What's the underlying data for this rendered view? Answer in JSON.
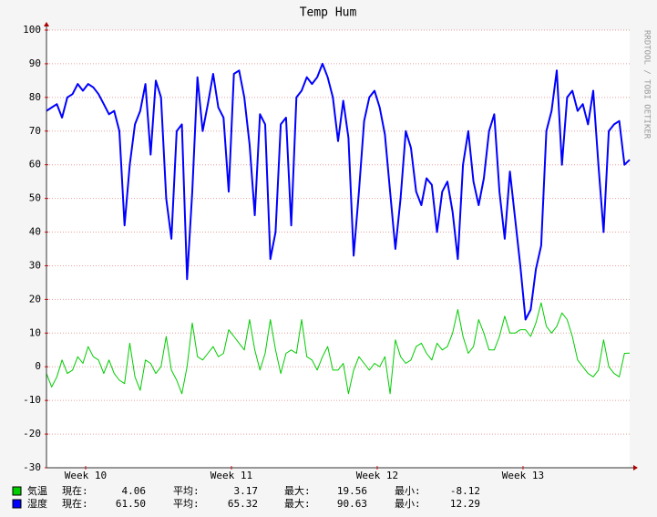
{
  "chart_data": {
    "type": "line",
    "title": "Temp Hum",
    "watermark": "RRDTOOL / TOBI OETIKER",
    "x": [
      0,
      0.25,
      0.5,
      0.75,
      1,
      1.25,
      1.5,
      1.75,
      2,
      2.25,
      2.5,
      2.75,
      3,
      3.25,
      3.5,
      3.75,
      4,
      4.25,
      4.5,
      4.75,
      5,
      5.25,
      5.5,
      5.75,
      6,
      6.25,
      6.5,
      6.75,
      7,
      7.25,
      7.5,
      7.75,
      8,
      8.25,
      8.5,
      8.75,
      9,
      9.25,
      9.5,
      9.75,
      10,
      10.25,
      10.5,
      10.75,
      11,
      11.25,
      11.5,
      11.75,
      12,
      12.25,
      12.5,
      12.75,
      13,
      13.25,
      13.5,
      13.75,
      14,
      14.25,
      14.5,
      14.75,
      15,
      15.25,
      15.5,
      15.75,
      16,
      16.25,
      16.5,
      16.75,
      17,
      17.25,
      17.5,
      17.75,
      18,
      18.25,
      18.5,
      18.75,
      19,
      19.25,
      19.5,
      19.75,
      20,
      20.25,
      20.5,
      20.75,
      21,
      21.25,
      21.5,
      21.75,
      22,
      22.25,
      22.5,
      22.75,
      23,
      23.25,
      23.5,
      23.75,
      24,
      24.25,
      24.5,
      24.75,
      25,
      25.25,
      25.5,
      25.75,
      26,
      26.25,
      26.5,
      26.75,
      27,
      27.25,
      27.5,
      27.75,
      28
    ],
    "xlim": [
      0,
      28
    ],
    "xticks": [
      {
        "value": 1.88,
        "label": "Week 10"
      },
      {
        "value": 8.88,
        "label": "Week 11"
      },
      {
        "value": 15.88,
        "label": "Week 12"
      },
      {
        "value": 22.88,
        "label": "Week 13"
      }
    ],
    "ylim": [
      -30,
      100
    ],
    "yticks": [
      -30,
      -20,
      -10,
      0,
      10,
      20,
      30,
      40,
      50,
      60,
      70,
      80,
      90,
      100
    ],
    "grid": true,
    "legend_labels": [
      "現在:",
      "平均:",
      "最大:",
      "最小:"
    ],
    "series": [
      {
        "name": "気温",
        "color": "#00cc00",
        "legend_values": [
          "4.06",
          "3.17",
          "19.56",
          "-8.12"
        ],
        "values": [
          -2,
          -6,
          -3,
          2,
          -2,
          -1,
          3,
          1,
          6,
          3,
          2,
          -2,
          2,
          -2,
          -4,
          -5,
          7,
          -3,
          -7,
          2,
          1,
          -2,
          0,
          9,
          -1,
          -4,
          -8,
          0,
          13,
          3,
          2,
          4,
          6,
          3,
          4,
          11,
          9,
          7,
          5,
          14,
          5,
          -1,
          4,
          14,
          5,
          -2,
          4,
          5,
          4,
          14,
          3,
          2,
          -1,
          3,
          6,
          -1,
          -1,
          1,
          -8,
          -1,
          3,
          1,
          -1,
          1,
          0,
          3,
          -8,
          8,
          3,
          1,
          2,
          6,
          7,
          4,
          2,
          7,
          5,
          6,
          10,
          17,
          9,
          4,
          6,
          14,
          10,
          5,
          5,
          9,
          15,
          10,
          10,
          11,
          11,
          9,
          13,
          19,
          12,
          10,
          12,
          16,
          14,
          9,
          2,
          0,
          -2,
          -3,
          -1,
          8,
          0,
          -2,
          -3,
          4,
          4.06
        ]
      },
      {
        "name": "湿度",
        "color": "#0000ff",
        "legend_values": [
          "61.50",
          "65.32",
          "90.63",
          "12.29"
        ],
        "values": [
          76,
          77,
          78,
          74,
          80,
          81,
          84,
          82,
          84,
          83,
          81,
          78,
          75,
          76,
          70,
          42,
          60,
          72,
          76,
          84,
          63,
          85,
          80,
          50,
          38,
          70,
          72,
          26,
          52,
          86,
          70,
          78,
          87,
          77,
          74,
          52,
          87,
          88,
          80,
          66,
          45,
          75,
          72,
          32,
          40,
          72,
          74,
          42,
          80,
          82,
          86,
          84,
          86,
          90,
          86,
          80,
          67,
          79,
          68,
          33,
          52,
          73,
          80,
          82,
          77,
          69,
          52,
          35,
          50,
          70,
          65,
          52,
          48,
          56,
          54,
          40,
          52,
          55,
          46,
          32,
          60,
          70,
          55,
          48,
          56,
          70,
          75,
          52,
          38,
          58,
          44,
          30,
          14,
          17,
          29,
          36,
          70,
          76,
          88,
          60,
          80,
          82,
          76,
          78,
          72,
          82,
          60,
          40,
          70,
          72,
          73,
          60,
          61.5
        ]
      }
    ]
  }
}
